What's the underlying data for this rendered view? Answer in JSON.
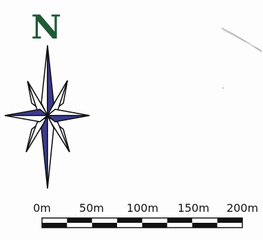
{
  "map": {
    "north_label": "N",
    "north_color": "#1f5a36",
    "star_color": "#3b3a8f",
    "scale_labels": [
      "0m",
      "50m",
      "100m",
      "150m",
      "200m"
    ],
    "scale_max_m": 200,
    "scale_segments": 4
  }
}
